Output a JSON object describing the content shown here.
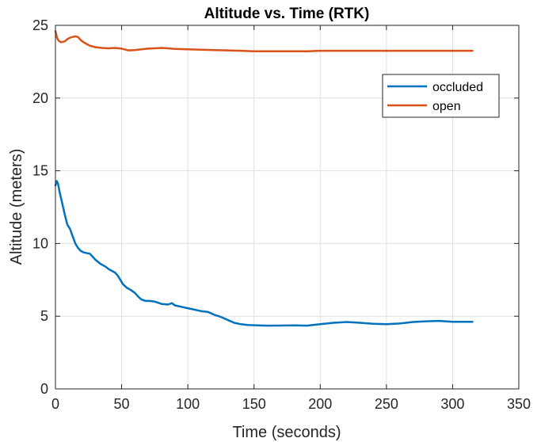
{
  "chart_data": {
    "type": "line",
    "title": "Altitude vs. Time (RTK)",
    "xlabel": "Time (seconds)",
    "ylabel": "Altitude (meters)",
    "xlim": [
      0,
      350
    ],
    "ylim": [
      0,
      25
    ],
    "xticks": [
      0,
      50,
      100,
      150,
      200,
      250,
      300,
      350
    ],
    "yticks": [
      0,
      5,
      10,
      15,
      20,
      25
    ],
    "grid": true,
    "legend_position": "top-right",
    "series": [
      {
        "name": "occluded",
        "color": "#0072BD",
        "x": [
          0,
          1,
          2,
          3,
          5,
          7,
          9,
          11,
          13,
          15,
          17,
          19,
          21,
          23,
          26,
          28,
          30,
          32,
          34,
          36,
          38,
          40,
          42,
          45,
          47,
          49,
          51,
          54,
          57,
          60,
          63,
          65,
          68,
          71,
          75,
          80,
          85,
          88,
          90,
          95,
          100,
          105,
          110,
          115,
          120,
          125,
          130,
          135,
          140,
          145,
          150,
          160,
          170,
          180,
          190,
          200,
          210,
          220,
          230,
          240,
          250,
          260,
          270,
          280,
          290,
          300,
          315
        ],
        "y": [
          14.0,
          14.3,
          14.1,
          13.6,
          12.8,
          12.0,
          11.3,
          11.0,
          10.5,
          10.0,
          9.7,
          9.5,
          9.4,
          9.35,
          9.3,
          9.1,
          8.9,
          8.75,
          8.6,
          8.5,
          8.4,
          8.25,
          8.15,
          8.0,
          7.8,
          7.5,
          7.2,
          6.95,
          6.8,
          6.6,
          6.3,
          6.15,
          6.05,
          6.05,
          6.0,
          5.85,
          5.8,
          5.9,
          5.75,
          5.65,
          5.55,
          5.45,
          5.35,
          5.3,
          5.1,
          4.95,
          4.75,
          4.55,
          4.45,
          4.4,
          4.38,
          4.35,
          4.36,
          4.37,
          4.35,
          4.45,
          4.55,
          4.6,
          4.55,
          4.48,
          4.45,
          4.5,
          4.6,
          4.65,
          4.68,
          4.62,
          4.62
        ]
      },
      {
        "name": "open",
        "color": "#D95319",
        "x": [
          0,
          1,
          2,
          3,
          4,
          5,
          7,
          9,
          11,
          13,
          15,
          17,
          19,
          21,
          23,
          26,
          30,
          35,
          40,
          45,
          50,
          55,
          60,
          65,
          70,
          75,
          80,
          85,
          90,
          100,
          110,
          120,
          130,
          140,
          150,
          170,
          190,
          200,
          230,
          260,
          290,
          315
        ],
        "y": [
          24.6,
          24.2,
          24.0,
          23.9,
          23.85,
          23.85,
          23.9,
          24.05,
          24.15,
          24.2,
          24.25,
          24.2,
          24.0,
          23.85,
          23.75,
          23.6,
          23.5,
          23.45,
          23.42,
          23.45,
          23.4,
          23.28,
          23.3,
          23.35,
          23.4,
          23.42,
          23.45,
          23.42,
          23.38,
          23.35,
          23.33,
          23.3,
          23.28,
          23.25,
          23.22,
          23.22,
          23.22,
          23.25,
          23.25,
          23.25,
          23.25,
          23.25
        ]
      }
    ]
  }
}
